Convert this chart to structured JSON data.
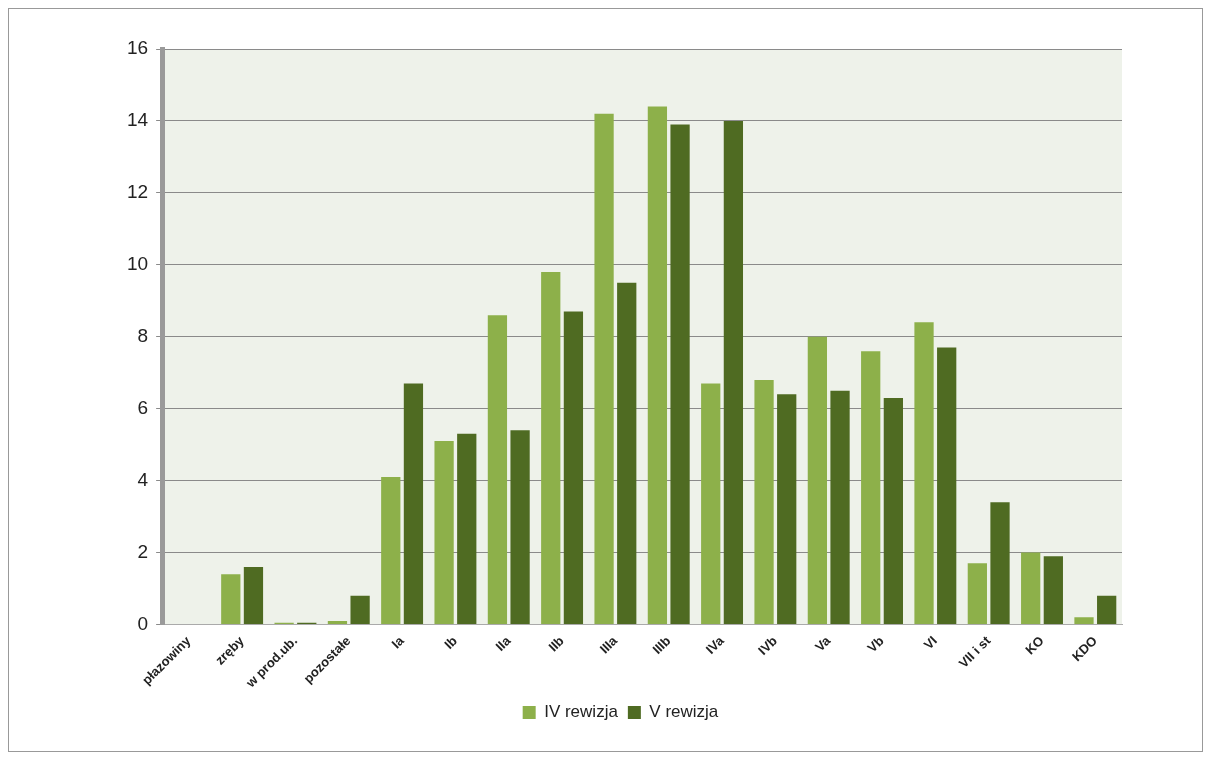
{
  "chart_data": {
    "type": "bar",
    "categories": [
      "płazowiny",
      "zręby",
      "w prod.ub.",
      "pozostałe",
      "Ia",
      "Ib",
      "IIa",
      "IIb",
      "IIIa",
      "IIIb",
      "IVa",
      "IVb",
      "Va",
      "Vb",
      "VI",
      "VII i st",
      "KO",
      "KDO"
    ],
    "series": [
      {
        "name": "IV rewizja",
        "color": "#8db04a",
        "values": [
          0,
          1.4,
          0.05,
          0.1,
          4.1,
          5.1,
          8.6,
          9.8,
          14.2,
          14.4,
          6.7,
          6.8,
          8.0,
          7.6,
          8.4,
          1.7,
          2.0,
          0.2
        ]
      },
      {
        "name": "V rewizja",
        "color": "#4f6b22",
        "values": [
          0,
          1.6,
          0.05,
          0.8,
          6.7,
          5.3,
          5.4,
          8.7,
          9.5,
          13.9,
          14.0,
          6.4,
          6.5,
          6.3,
          7.7,
          3.4,
          1.9,
          0.8
        ]
      }
    ],
    "ylim": [
      0,
      16
    ],
    "yticks": [
      0,
      2,
      4,
      6,
      8,
      10,
      12,
      14,
      16
    ],
    "grid": "y",
    "legend": "bottom"
  }
}
